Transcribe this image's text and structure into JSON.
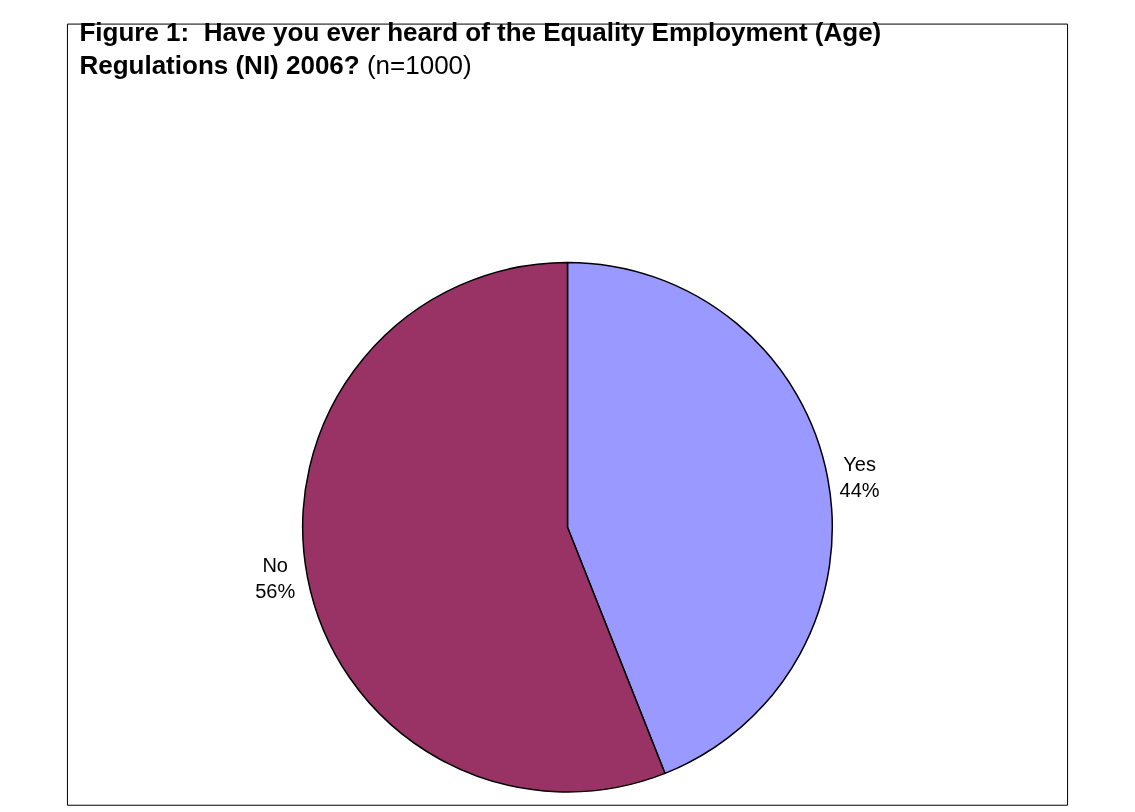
{
  "chart_data": {
    "type": "pie",
    "title": "Figure 1:  Have you ever heard of the Equality Employment (Age) Regulations (NI) 2006?",
    "subtitle": "(n=1000)",
    "categories": [
      "Yes",
      "No"
    ],
    "values": [
      44,
      56
    ],
    "value_labels": [
      "44%",
      "56%"
    ],
    "colors": [
      "#9999ff",
      "#993366"
    ],
    "legend": false
  }
}
